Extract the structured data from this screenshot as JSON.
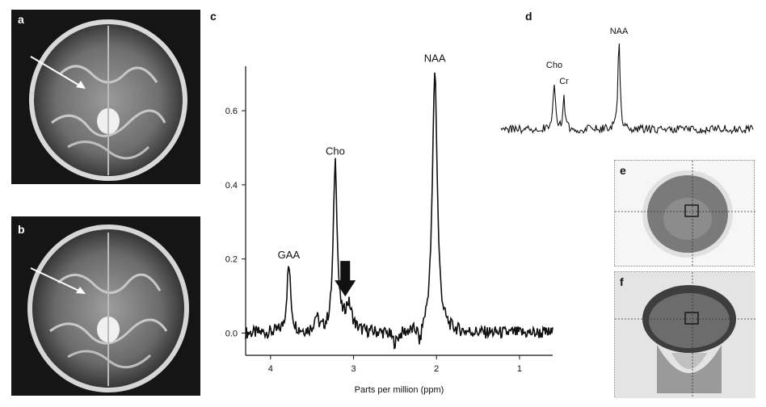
{
  "panels": {
    "a": "a",
    "b": "b",
    "c": "c",
    "d": "d",
    "e": "e",
    "f": "f"
  },
  "chart_data": [
    {
      "type": "line",
      "panel": "c",
      "xlabel": "Parts per million (ppm)",
      "ylabel": "",
      "xlim": [
        4.3,
        0.6
      ],
      "ylim": [
        -0.06,
        0.72
      ],
      "x_reversed": true,
      "x_ticks": [
        4,
        3,
        2,
        1
      ],
      "y_ticks": [
        0.0,
        0.2,
        0.4,
        0.6
      ],
      "y_tick_labels": [
        "0.0",
        "0.2",
        "0.4",
        "0.6"
      ],
      "annotations": [
        {
          "text": "GAA",
          "x": 3.78,
          "y": 0.18
        },
        {
          "text": "Cho",
          "x": 3.22,
          "y": 0.46
        },
        {
          "text": "NAA",
          "x": 2.02,
          "y": 0.71
        }
      ],
      "arrow": {
        "x": 3.1,
        "y_tip": 0.09,
        "color": "#111111"
      },
      "peaks": [
        {
          "name": "GAA",
          "ppm": 3.78,
          "height": 0.18
        },
        {
          "name": "Cho",
          "ppm": 3.22,
          "height": 0.46
        },
        {
          "name": "NAA",
          "ppm": 2.02,
          "height": 0.71
        }
      ]
    },
    {
      "type": "line",
      "panel": "d",
      "annotations": [
        {
          "text": "Cho"
        },
        {
          "text": "Cr"
        },
        {
          "text": "NAA"
        }
      ],
      "peaks": [
        {
          "name": "Cho",
          "relative_height": 0.55
        },
        {
          "name": "Cr",
          "relative_height": 0.35
        },
        {
          "name": "NAA",
          "relative_height": 1.0
        }
      ]
    }
  ]
}
